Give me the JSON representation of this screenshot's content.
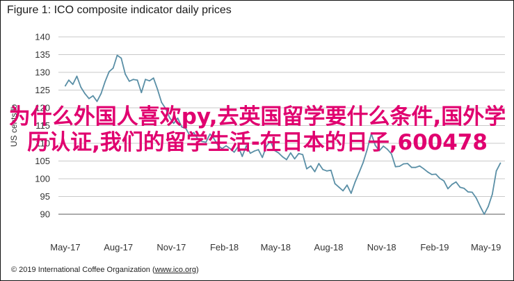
{
  "figure": {
    "title": "Figure 1: ICO composite indicator daily prices",
    "footer_copyright": "© 2019 International Coffee Organization (",
    "footer_link": "www.ico.org",
    "footer_close": ")"
  },
  "overlay": {
    "text": "为什么外国人喜欢py,去英国留学要什么条件,国外学历认证,我们的留学生活-在日本的日子,600478",
    "color": "#e0006f"
  },
  "colors": {
    "line": "#5a8fa6",
    "grid": "#c9c9c9",
    "axis": "#7a7a7a",
    "text": "#333333"
  },
  "chart_data": {
    "type": "line",
    "title": "Figure 1: ICO composite indicator daily prices",
    "ylabel": "US cents/lb",
    "xlabel": "",
    "ylim": [
      90,
      140
    ],
    "yticks": [
      90,
      95,
      100,
      105,
      110,
      115,
      120,
      125,
      130,
      135,
      140
    ],
    "xticks": [
      "May-17",
      "Aug-17",
      "Nov-17",
      "Feb-18",
      "May-18",
      "Aug-18",
      "Nov-18",
      "Feb-19",
      "May-19"
    ],
    "grid": true,
    "legend": "none",
    "series": [
      {
        "x": [
          "2017-05-01",
          "2017-05-07",
          "2017-05-14",
          "2017-05-21",
          "2017-05-28",
          "2017-06-04",
          "2017-06-11",
          "2017-06-18",
          "2017-06-25",
          "2017-07-02",
          "2017-07-09",
          "2017-07-16",
          "2017-07-23",
          "2017-07-30",
          "2017-08-06",
          "2017-08-13",
          "2017-08-20",
          "2017-08-27",
          "2017-09-03",
          "2017-09-10",
          "2017-09-17",
          "2017-09-24",
          "2017-10-01",
          "2017-10-08",
          "2017-10-15",
          "2017-10-22",
          "2017-10-29",
          "2017-11-05",
          "2017-11-12",
          "2017-11-19",
          "2017-11-26",
          "2017-12-03",
          "2017-12-10",
          "2017-12-17",
          "2017-12-24",
          "2017-12-31",
          "2018-01-07",
          "2018-01-14",
          "2018-01-21",
          "2018-01-28",
          "2018-02-04",
          "2018-02-11",
          "2018-02-18",
          "2018-02-25",
          "2018-03-04",
          "2018-03-11",
          "2018-03-18",
          "2018-03-25",
          "2018-04-01",
          "2018-04-08",
          "2018-04-15",
          "2018-04-22",
          "2018-04-29",
          "2018-05-06",
          "2018-05-13",
          "2018-05-20",
          "2018-05-27",
          "2018-06-03",
          "2018-06-10",
          "2018-06-17",
          "2018-06-24",
          "2018-07-01",
          "2018-07-08",
          "2018-07-15",
          "2018-07-22",
          "2018-07-29",
          "2018-08-05",
          "2018-08-12",
          "2018-08-19",
          "2018-08-26",
          "2018-09-02",
          "2018-09-09",
          "2018-09-16",
          "2018-09-23",
          "2018-09-30",
          "2018-10-07",
          "2018-10-14",
          "2018-10-21",
          "2018-10-28",
          "2018-11-04",
          "2018-11-11",
          "2018-11-18",
          "2018-11-25",
          "2018-12-02",
          "2018-12-09",
          "2018-12-16",
          "2018-12-23",
          "2018-12-30",
          "2019-01-06",
          "2019-01-13",
          "2019-01-20",
          "2019-01-27",
          "2019-02-03",
          "2019-02-10",
          "2019-02-17",
          "2019-02-24",
          "2019-03-03",
          "2019-03-10",
          "2019-03-17",
          "2019-03-24",
          "2019-03-31",
          "2019-04-07",
          "2019-04-14",
          "2019-04-21",
          "2019-04-28",
          "2019-05-05",
          "2019-05-12",
          "2019-05-19",
          "2019-05-26"
        ],
        "values": [
          126.2,
          127.8,
          126.6,
          128.9,
          125.8,
          124.0,
          122.6,
          123.4,
          121.8,
          124.0,
          127.4,
          130.2,
          131.2,
          134.8,
          134.0,
          129.5,
          127.5,
          128.0,
          127.8,
          124.3,
          128.0,
          127.6,
          128.4,
          125.2,
          121.5,
          119.8,
          117.2,
          115.6,
          117.1,
          114.6,
          114.2,
          112.2,
          113.0,
          111.2,
          110.5,
          110.3,
          112.6,
          111.3,
          109.4,
          108.5,
          109.3,
          108.5,
          107.5,
          109.1,
          106.3,
          109.3,
          107.2,
          107.8,
          108.2,
          106.0,
          109.2,
          110.6,
          108.0,
          107.3,
          106.2,
          105.4,
          107.3,
          105.6,
          107.1,
          106.8,
          102.8,
          103.6,
          102.0,
          104.3,
          102.6,
          102.2,
          102.4,
          98.6,
          97.6,
          96.6,
          98.2,
          95.9,
          99.1,
          101.8,
          104.6,
          108.3,
          112.7,
          109.4,
          107.9,
          109.2,
          108.3,
          107.0,
          103.4,
          103.5,
          104.2,
          104.3,
          103.2,
          103.2,
          103.6,
          102.8,
          101.9,
          101.2,
          101.3,
          100.1,
          99.4,
          97.2,
          98.4,
          99.1,
          97.6,
          97.3,
          96.3,
          96.2,
          94.6,
          92.2,
          90.0,
          92.2,
          95.6,
          102.2,
          104.4
        ]
      }
    ]
  }
}
